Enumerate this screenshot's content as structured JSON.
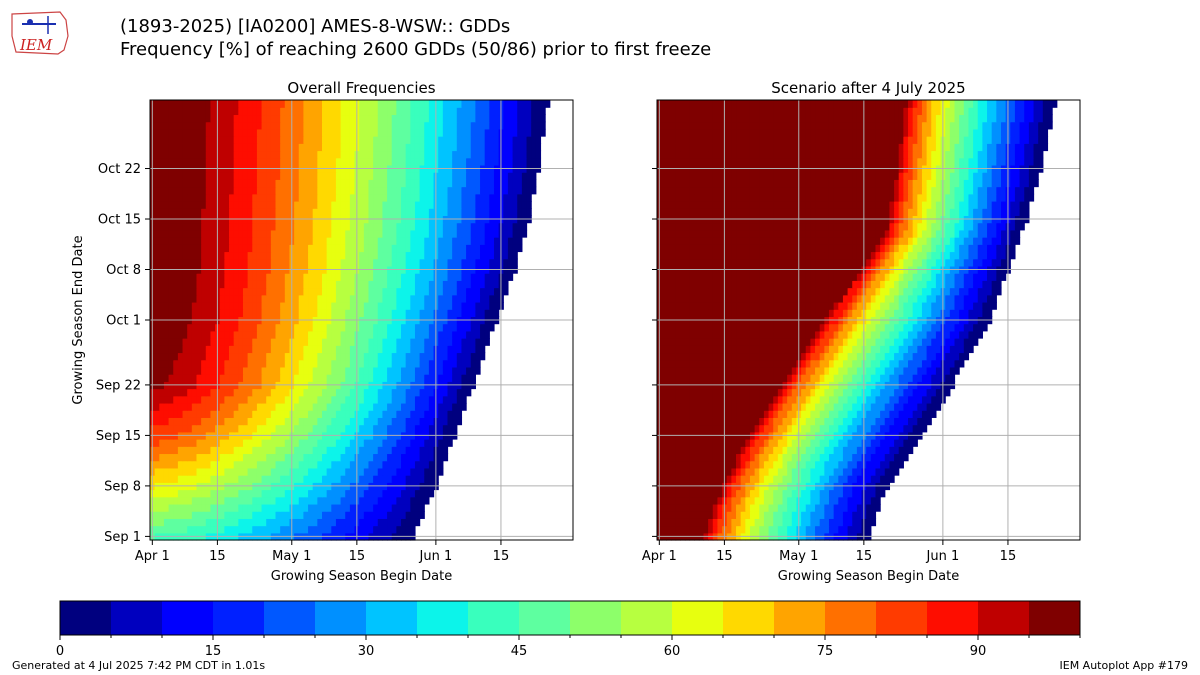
{
  "header": {
    "title_line1": "(1893-2025) [IA0200] AMES-8-WSW:: GDDs",
    "title_line2": "Frequency [%] of reaching 2600 GDDs (50/86) prior to first freeze",
    "logo_text": "IEM"
  },
  "footer": {
    "generated": "Generated at 4 Jul 2025 7:42 PM CDT in 1.01s",
    "app": "IEM Autoplot App #179"
  },
  "chart_data": [
    {
      "type": "heatmap",
      "title": "Overall Frequencies",
      "xlabel": "Growing Season Begin Date",
      "ylabel": "Growing Season End Date",
      "x_range": [
        "Apr 1",
        "Jun 30"
      ],
      "y_range": [
        "Sep 1",
        "Oct 31"
      ],
      "x_ticks": [
        "Apr 1",
        "15",
        "May 1",
        "15",
        "Jun 1",
        "15"
      ],
      "y_ticks": [
        "Sep 1",
        "Sep 8",
        "Sep 15",
        "Sep 22",
        "Oct 1",
        "Oct 8",
        "Oct 15",
        "Oct 22"
      ],
      "grid": true,
      "description_points": {
        "last_valid_begin_by_end_date": [
          {
            "end": "Sep 1",
            "begin": "May 27"
          },
          {
            "end": "Sep 8",
            "begin": "Jun 1"
          },
          {
            "end": "Sep 15",
            "begin": "Jun 5"
          },
          {
            "end": "Sep 22",
            "begin": "Jun 9"
          },
          {
            "end": "Oct 1",
            "begin": "Jun 14"
          },
          {
            "end": "Oct 8",
            "begin": "Jun 18"
          },
          {
            "end": "Oct 15",
            "begin": "Jun 21"
          },
          {
            "end": "Oct 22",
            "begin": "Jun 23"
          },
          {
            "end": "Oct 31",
            "begin": "Jun 25"
          }
        ],
        "frequency_at_apr1": [
          {
            "end": "Sep 1",
            "value": 42
          },
          {
            "end": "Sep 8",
            "value": 62
          },
          {
            "end": "Sep 15",
            "value": 80
          },
          {
            "end": "Sep 22",
            "value": 93
          },
          {
            "end": "Oct 1",
            "value": 97
          },
          {
            "end": "Oct 8",
            "value": 98
          },
          {
            "end": "Oct 31",
            "value": 99
          }
        ]
      }
    },
    {
      "type": "heatmap",
      "title": "Scenario after 4 July 2025",
      "xlabel": "Growing Season Begin Date",
      "ylabel": "",
      "x_range": [
        "Apr 1",
        "Jun 30"
      ],
      "y_range": [
        "Sep 1",
        "Oct 31"
      ],
      "x_ticks": [
        "Apr 1",
        "15",
        "May 1",
        "15",
        "Jun 1",
        "15"
      ],
      "y_ticks": [
        "Sep 1",
        "Sep 8",
        "Sep 15",
        "Sep 22",
        "Oct 1",
        "Oct 8",
        "Oct 15",
        "Oct 22"
      ],
      "grid": true,
      "description_points": {
        "last_valid_begin_by_end_date": [
          {
            "end": "Sep 1",
            "begin": "May 16"
          },
          {
            "end": "Sep 8",
            "begin": "May 20"
          },
          {
            "end": "Sep 15",
            "begin": "May 27"
          },
          {
            "end": "Sep 22",
            "begin": "Jun 3"
          },
          {
            "end": "Oct 1",
            "begin": "Jun 11"
          },
          {
            "end": "Oct 8",
            "begin": "Jun 15"
          },
          {
            "end": "Oct 15",
            "begin": "Jun 19"
          },
          {
            "end": "Oct 22",
            "begin": "Jun 22"
          },
          {
            "end": "Oct 31",
            "begin": "Jun 25"
          }
        ],
        "frequency_at_apr1": [
          {
            "end": "Sep 1",
            "value": 99
          },
          {
            "end": "Oct 31",
            "value": 99
          }
        ]
      }
    }
  ],
  "colorbar": {
    "min": 0,
    "max": 100,
    "step": 5,
    "ticks": [
      "0",
      "15",
      "30",
      "45",
      "60",
      "75",
      "90"
    ],
    "colors": [
      "#00007f",
      "#0000bf",
      "#0000fe",
      "#0020ff",
      "#0058ff",
      "#0090ff",
      "#00c4ff",
      "#0cf4ea",
      "#39ffbd",
      "#5effa0",
      "#8dff6a",
      "#b7ff40",
      "#e7ff0f",
      "#ffd900",
      "#ffa400",
      "#ff7000",
      "#ff3b00",
      "#fe0d00",
      "#bf0000",
      "#7f0000"
    ]
  }
}
